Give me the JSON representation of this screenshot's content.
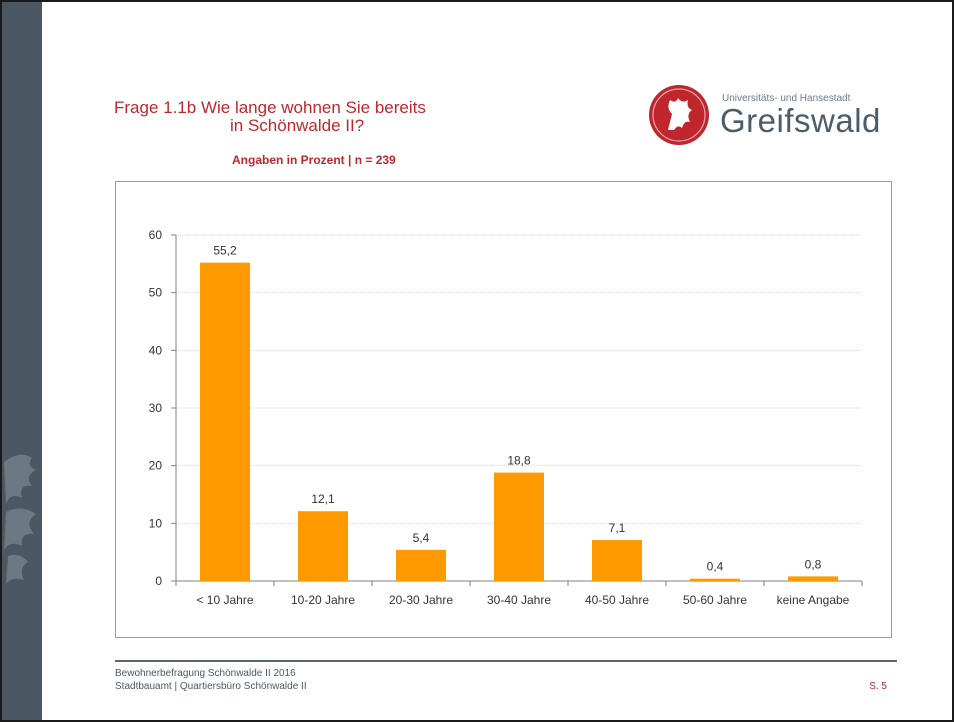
{
  "slide": {
    "title_line1": "Frage 1.1b  Wie lange wohnen Sie bereits",
    "title_line2": "in Schönwalde II?",
    "subtitle": "Angaben in Prozent | n = 239",
    "logo_small": "Universitäts- und Hansestadt",
    "logo_big": "Greifswald",
    "footer_line1": "Bewohnerbefragung Schönwalde II 2016",
    "footer_line2": "Stadtbauamt | Quartiersbüro Schönwalde II",
    "page": "S. 5"
  },
  "colors": {
    "bar": "#ff9900",
    "accent": "#c0272d",
    "sidebar": "#4a5863",
    "grid": "#d9d9d9"
  },
  "chart_data": {
    "type": "bar",
    "categories": [
      "< 10 Jahre",
      "10-20 Jahre",
      "20-30 Jahre",
      "30-40 Jahre",
      "40-50 Jahre",
      "50-60 Jahre",
      "keine Angabe"
    ],
    "values": [
      55.2,
      12.1,
      5.4,
      18.8,
      7.1,
      0.4,
      0.8
    ],
    "value_labels": [
      "55,2",
      "12,1",
      "5,4",
      "18,8",
      "7,1",
      "0,4",
      "0,8"
    ],
    "yticks": [
      0,
      10,
      20,
      30,
      40,
      50,
      60
    ],
    "ylim": [
      0,
      60
    ],
    "grid": true,
    "legend": "none"
  }
}
